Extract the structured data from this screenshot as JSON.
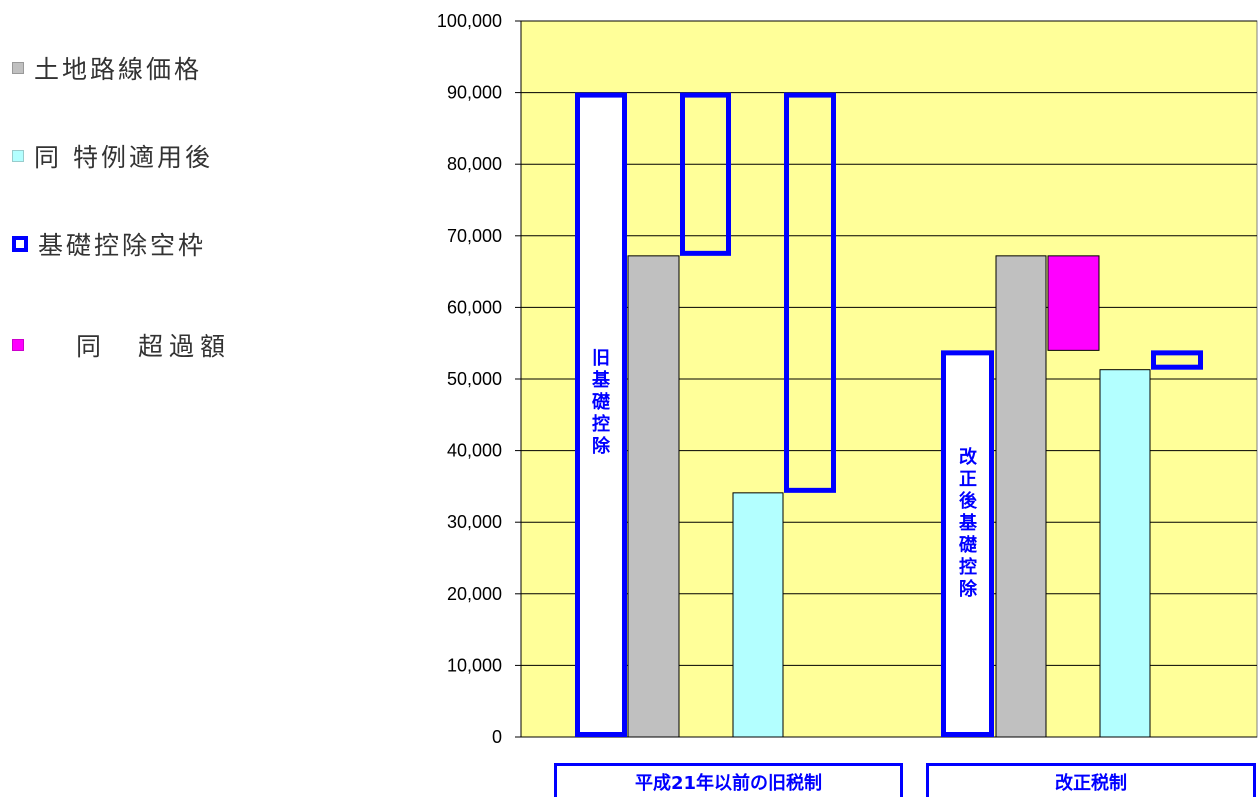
{
  "chart_data": {
    "type": "bar",
    "subtype": "waterfall",
    "ylim": [
      0,
      100000
    ],
    "y_ticks": [
      "0",
      "10,000",
      "20,000",
      "30,000",
      "40,000",
      "50,000",
      "60,000",
      "70,000",
      "80,000",
      "90,000",
      "100,000"
    ],
    "grid": true,
    "plot_background": "#ffff99",
    "legend_position": "left",
    "legend": [
      {
        "label": "土地路線価格",
        "color": "#c0c0c0",
        "style": "filled"
      },
      {
        "label": "同 特例適用後",
        "color": "#b3ffff",
        "style": "filled"
      },
      {
        "label": "基礎控除空枠",
        "color": "#0000ff",
        "style": "outline"
      },
      {
        "label": "同　超過額",
        "color": "#ff00ff",
        "style": "filled"
      }
    ],
    "groups": [
      {
        "label": "平成21年以前の旧税制",
        "bars": [
          {
            "series": "旧基礎控除",
            "kind": "outline",
            "bottom": 0,
            "top": 90000,
            "label": "旧基礎控除"
          },
          {
            "series": "土地路線価格",
            "kind": "filled",
            "color": "#c0c0c0",
            "bottom": 0,
            "top": 67200
          },
          {
            "series": "基礎控除空枠",
            "kind": "outline",
            "bottom": 67200,
            "top": 90000
          },
          {
            "series": "同 特例適用後",
            "kind": "filled",
            "color": "#b3ffff",
            "bottom": 0,
            "top": 34100
          },
          {
            "series": "基礎控除空枠",
            "kind": "outline",
            "bottom": 34100,
            "top": 90000
          }
        ]
      },
      {
        "label": "改正税制",
        "bars": [
          {
            "series": "改正後基礎控除",
            "kind": "outline",
            "bottom": 0,
            "top": 54000,
            "label": "改正後基礎控除"
          },
          {
            "series": "土地路線価格",
            "kind": "filled",
            "color": "#c0c0c0",
            "bottom": 0,
            "top": 67200
          },
          {
            "series": "同　超過額",
            "kind": "filled",
            "color": "#ff00ff",
            "bottom": 54000,
            "top": 67200
          },
          {
            "series": "同 特例適用後",
            "kind": "filled",
            "color": "#b3ffff",
            "bottom": 0,
            "top": 51300
          },
          {
            "series": "基礎控除空枠",
            "kind": "outline",
            "bottom": 51300,
            "top": 54000
          }
        ]
      }
    ]
  }
}
